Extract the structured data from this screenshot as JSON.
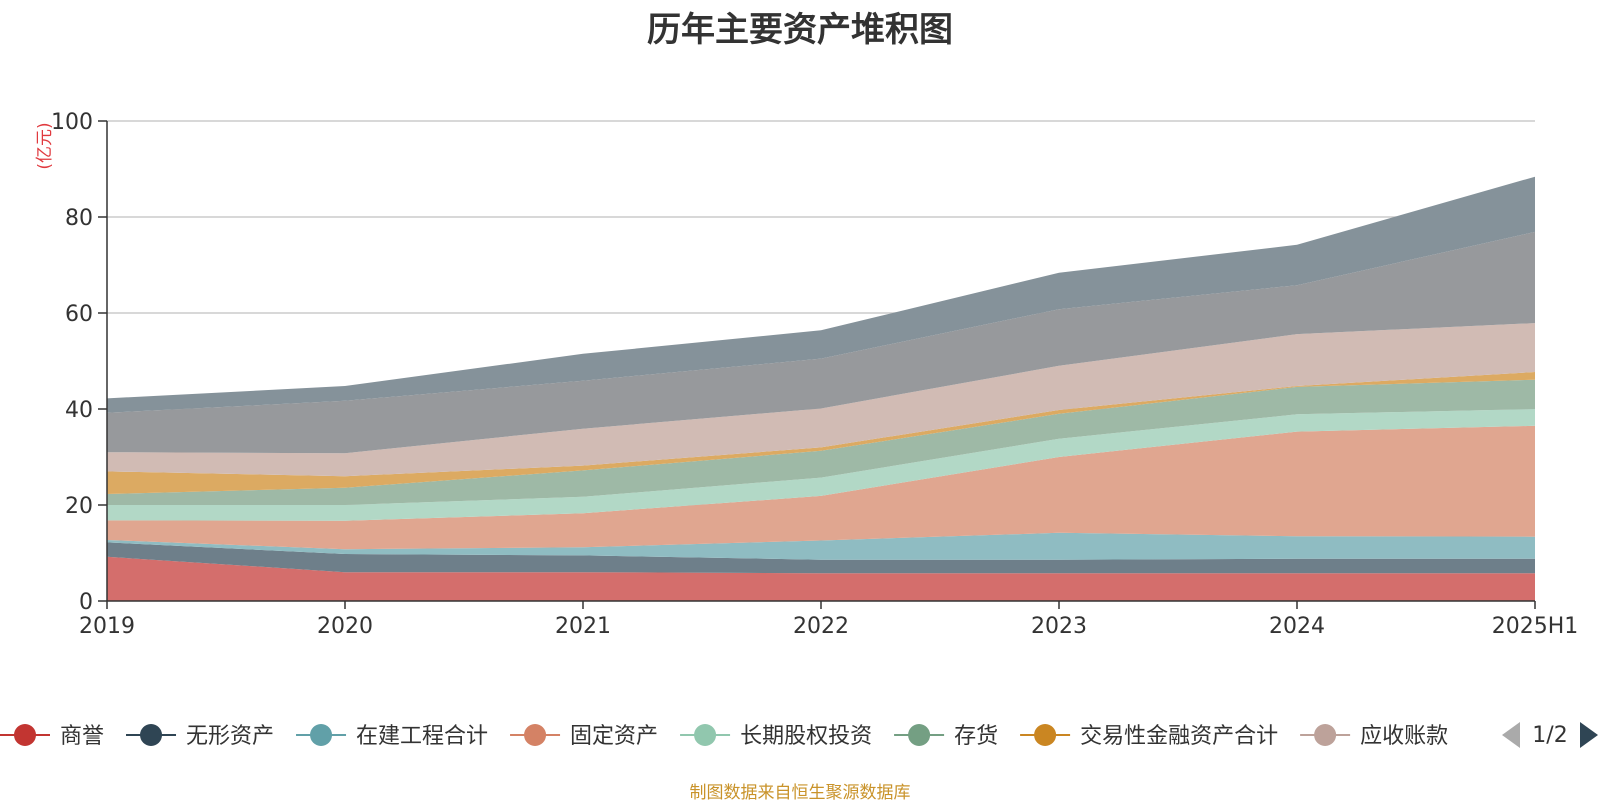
{
  "chart_data": {
    "type": "area",
    "title": "历年主要资产堆积图",
    "unit_label": "(亿元)",
    "unit_color": "#e0393e",
    "source_note": "制图数据来自恒生聚源数据库",
    "source_color": "#c9932a",
    "categories": [
      "2019",
      "2020",
      "2021",
      "2022",
      "2023",
      "2024",
      "2025H1"
    ],
    "ylim": [
      0,
      100
    ],
    "yticks": [
      0,
      20,
      40,
      60,
      80,
      100
    ],
    "grid": true,
    "legend_placement": "bottom",
    "legend_page": "1/2",
    "series": [
      {
        "name": "商誉",
        "color": "#c23531",
        "fill": "#d46e6c",
        "values": [
          9.2,
          6.0,
          6.0,
          5.8,
          5.8,
          5.8,
          5.8
        ]
      },
      {
        "name": "无形资产",
        "color": "#2f4554",
        "fill": "#6e7f8a",
        "values": [
          3.0,
          3.8,
          3.5,
          2.8,
          2.8,
          3.0,
          3.0
        ]
      },
      {
        "name": "在建工程合计",
        "color": "#61a0a8",
        "fill": "#8fbcc2",
        "values": [
          0.5,
          1.0,
          1.7,
          4.0,
          5.6,
          4.7,
          4.6
        ]
      },
      {
        "name": "固定资产",
        "color": "#d48265",
        "fill": "#e0a690",
        "values": [
          4.1,
          5.9,
          7.1,
          9.3,
          15.8,
          21.8,
          23.1
        ]
      },
      {
        "name": "长期股权投资",
        "color": "#91c7ae",
        "fill": "#b2d8c6",
        "values": [
          3.2,
          3.3,
          3.4,
          3.8,
          3.8,
          3.6,
          3.5
        ]
      },
      {
        "name": "存货",
        "color": "#749f83",
        "fill": "#9eb9a6",
        "values": [
          2.3,
          3.6,
          5.5,
          5.6,
          5.2,
          5.7,
          6.1
        ]
      },
      {
        "name": "交易性金融资产合计",
        "color": "#ca8622",
        "fill": "#dcaa62",
        "values": [
          4.7,
          2.4,
          1.0,
          0.7,
          0.8,
          0.2,
          1.6
        ]
      },
      {
        "name": "应收账款",
        "color": "#bda29a",
        "fill": "#d1bbb4",
        "values": [
          4.0,
          4.8,
          7.7,
          8.1,
          9.2,
          10.8,
          10.2
        ]
      },
      {
        "name": "",
        "color": "#6e7074",
        "fill": "#97999c",
        "values": [
          8.2,
          10.9,
          10.0,
          10.4,
          11.8,
          10.2,
          19.0
        ]
      },
      {
        "name": "",
        "color": "#546570",
        "fill": "#85929a",
        "values": [
          3.0,
          3.1,
          5.6,
          5.9,
          7.6,
          8.4,
          11.5
        ]
      }
    ]
  }
}
